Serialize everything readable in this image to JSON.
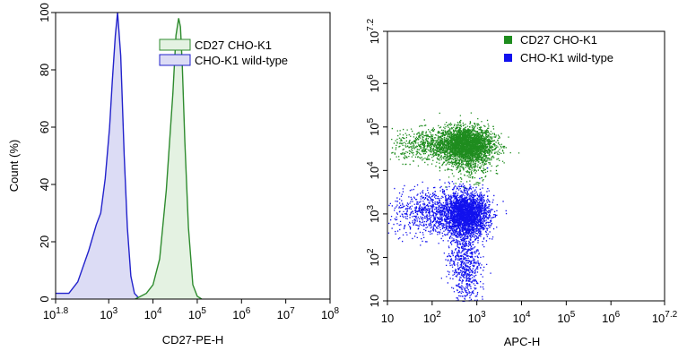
{
  "chart_data": [
    {
      "type": "area",
      "xscale": "log",
      "xlim": [
        1.8,
        8
      ],
      "ylim": [
        0,
        100
      ],
      "xlabel": "CD27-PE-H",
      "ylabel": "Count  (%)",
      "x_ticks": [
        {
          "base": "10",
          "exp": "1.8"
        },
        {
          "base": "10",
          "exp": "3"
        },
        {
          "base": "10",
          "exp": "4"
        },
        {
          "base": "10",
          "exp": "5"
        },
        {
          "base": "10",
          "exp": "6"
        },
        {
          "base": "10",
          "exp": "7"
        },
        {
          "base": "10",
          "exp": "8"
        }
      ],
      "x_tick_log_values": [
        1.8,
        3,
        4,
        5,
        6,
        7,
        8
      ],
      "y_ticks": [
        "0",
        "20",
        "40",
        "60",
        "80",
        "100"
      ],
      "y_tick_values": [
        0,
        20,
        40,
        60,
        80,
        100
      ],
      "legend_placement": "top-right",
      "series": [
        {
          "name": "CD27 CHO-K1",
          "color": "#2e8b2e",
          "fill": "#e4f2e2",
          "log_x": [
            3.6,
            3.85,
            4.0,
            4.15,
            4.3,
            4.45,
            4.52,
            4.58,
            4.62,
            4.66,
            4.72,
            4.8,
            4.9,
            5.0,
            5.1
          ],
          "y": [
            0,
            2,
            5,
            14,
            38,
            72,
            92,
            98,
            95,
            82,
            55,
            25,
            5,
            1,
            0
          ]
        },
        {
          "name": "CHO-K1 wild-type",
          "color": "#2222cc",
          "fill": "#dcdcf5",
          "log_x": [
            1.8,
            2.1,
            2.3,
            2.55,
            2.72,
            2.82,
            2.92,
            3.02,
            3.08,
            3.15,
            3.2,
            3.27,
            3.35,
            3.42,
            3.5,
            3.58,
            3.7
          ],
          "y": [
            2,
            2,
            6,
            17,
            26,
            30,
            42,
            60,
            76,
            92,
            100,
            85,
            50,
            25,
            8,
            2,
            0
          ]
        }
      ]
    },
    {
      "type": "scatter",
      "xscale": "log",
      "yscale": "log",
      "xlim": [
        1,
        7.2
      ],
      "ylim": [
        1,
        7.2
      ],
      "xlabel": "APC-H",
      "ylabel": "",
      "x_ticks": [
        {
          "base": "10",
          "exp": ""
        },
        {
          "base": "10",
          "exp": "2"
        },
        {
          "base": "10",
          "exp": "3"
        },
        {
          "base": "10",
          "exp": "4"
        },
        {
          "base": "10",
          "exp": "5"
        },
        {
          "base": "10",
          "exp": "6"
        },
        {
          "base": "10",
          "exp": "7.2"
        }
      ],
      "x_tick_log_values": [
        1,
        2,
        3,
        4,
        5,
        6,
        7.2
      ],
      "y_ticks": [
        {
          "base": "10",
          "exp": ""
        },
        {
          "base": "10",
          "exp": "2"
        },
        {
          "base": "10",
          "exp": "3"
        },
        {
          "base": "10",
          "exp": "4"
        },
        {
          "base": "10",
          "exp": "5"
        },
        {
          "base": "10",
          "exp": "6"
        },
        {
          "base": "10",
          "exp": "7.2"
        }
      ],
      "y_tick_log_values": [
        1,
        2,
        3,
        4,
        5,
        6,
        7.2
      ],
      "legend_placement": "top-right",
      "series": [
        {
          "name": "CD27 CHO-K1",
          "color": "#1e8c1e",
          "clusters": [
            {
              "log_x": 2.75,
              "log_y": 4.62,
              "sx": 0.3,
              "sy": 0.2,
              "n": 2600
            },
            {
              "log_x": 2.0,
              "log_y": 4.58,
              "sx": 0.45,
              "sy": 0.18,
              "n": 700
            },
            {
              "log_x": 2.85,
              "log_y": 4.3,
              "sx": 0.25,
              "sy": 0.25,
              "n": 500
            }
          ]
        },
        {
          "name": "CHO-K1 wild-type",
          "color": "#1111ee",
          "clusters": [
            {
              "log_x": 2.75,
              "log_y": 3.0,
              "sx": 0.25,
              "sy": 0.25,
              "n": 2600
            },
            {
              "log_x": 2.0,
              "log_y": 3.05,
              "sx": 0.45,
              "sy": 0.28,
              "n": 800
            },
            {
              "log_x": 2.7,
              "log_y": 2.0,
              "sx": 0.18,
              "sy": 0.35,
              "n": 500
            },
            {
              "log_x": 2.75,
              "log_y": 1.35,
              "sx": 0.15,
              "sy": 0.25,
              "n": 150
            }
          ]
        }
      ]
    }
  ]
}
